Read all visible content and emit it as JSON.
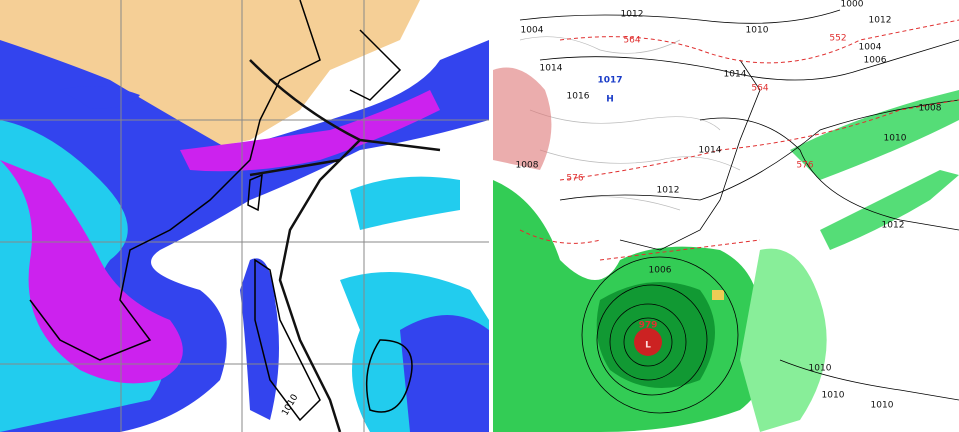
{
  "left_map": {
    "labels": [
      "1010"
    ]
  },
  "right_map": {
    "labels": [
      "1012",
      "1004",
      "564",
      "1010",
      "552",
      "1000",
      "1012",
      "1004",
      "1006",
      "1014",
      "1017",
      "H",
      "1016",
      "1014",
      "564",
      "1008",
      "1010",
      "1014",
      "576",
      "576",
      "1012",
      "1008",
      "1012",
      "1006",
      "979",
      "L",
      "1010",
      "1010",
      "1010"
    ]
  }
}
